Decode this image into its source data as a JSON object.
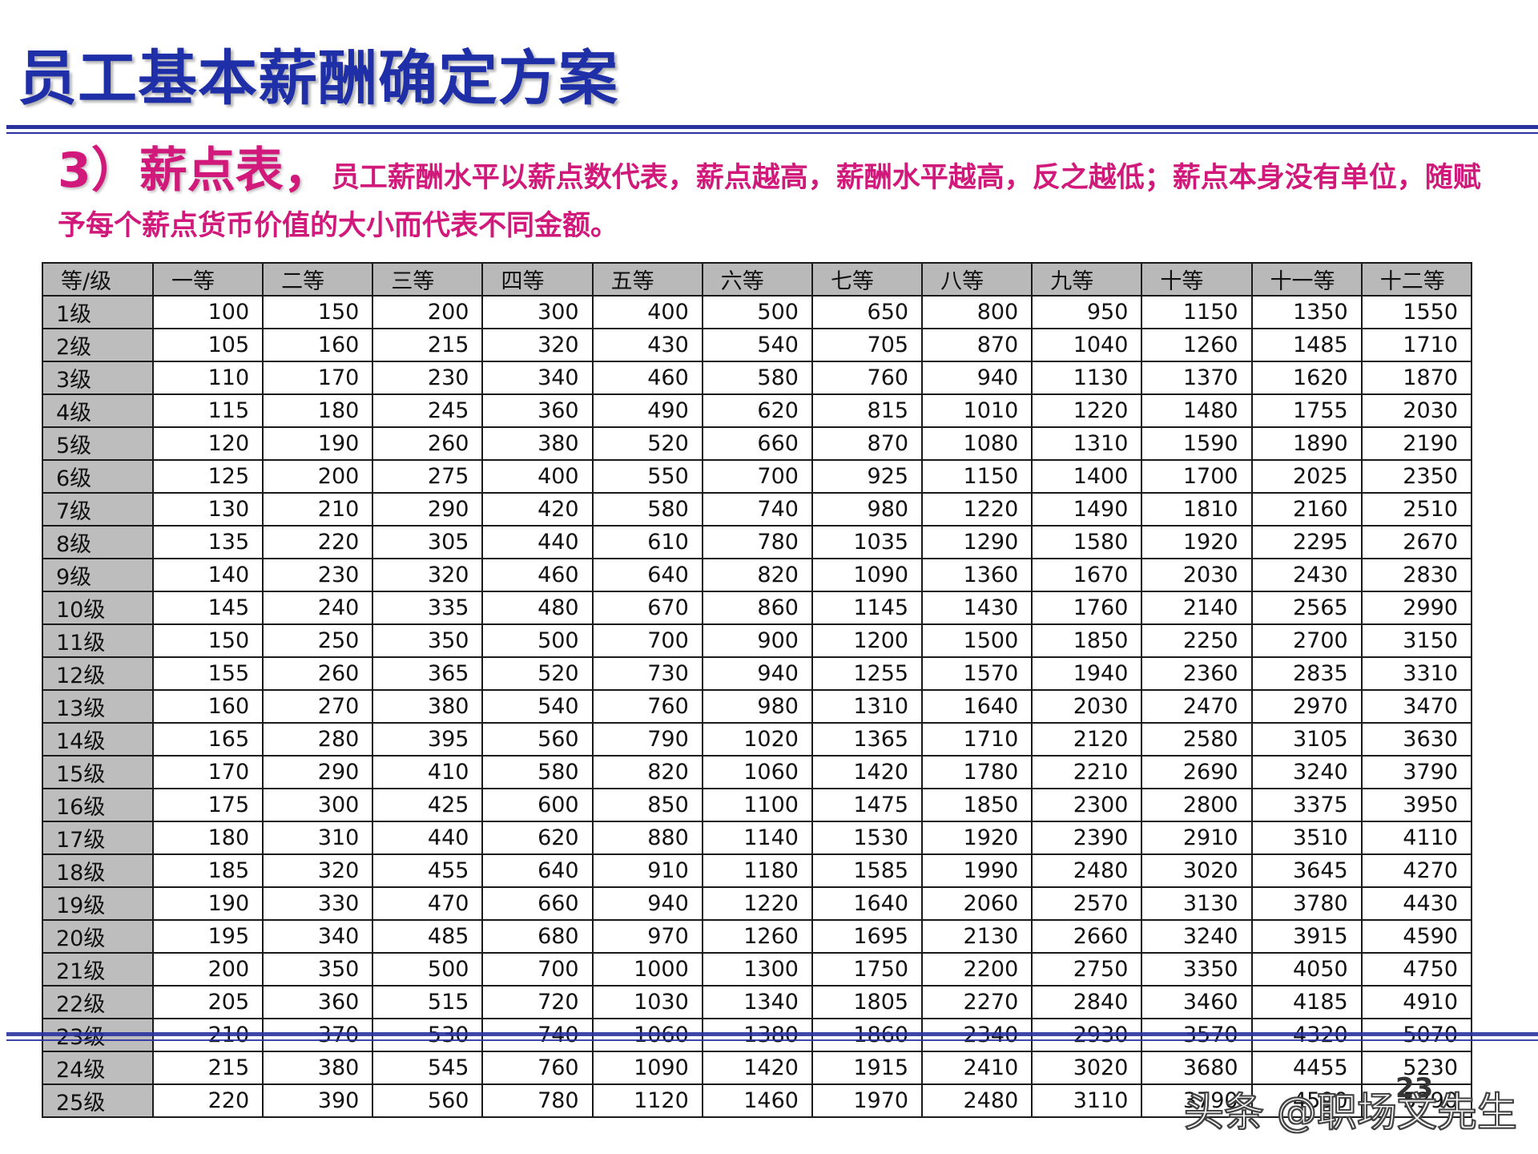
{
  "title": "员工基本薪酬确定方案",
  "subtitle": {
    "lead": "3）薪点表，",
    "body": "员工薪酬水平以薪点数代表，薪点越高，薪酬水平越高，反之越低；薪点本身没有单位，随赋予每个薪点货币价值的大小而代表不同金额。"
  },
  "table": {
    "columns": [
      "等/级",
      "一等",
      "二等",
      "三等",
      "四等",
      "五等",
      "六等",
      "七等",
      "八等",
      "九等",
      "十等",
      "十一等",
      "十二等"
    ],
    "rows": [
      {
        "label": "1级",
        "values": [
          "100",
          "150",
          "200",
          "300",
          "400",
          "500",
          "650",
          "800",
          "950",
          "1150",
          "1350",
          "1550"
        ]
      },
      {
        "label": "2级",
        "values": [
          "105",
          "160",
          "215",
          "320",
          "430",
          "540",
          "705",
          "870",
          "1040",
          "1260",
          "1485",
          "1710"
        ]
      },
      {
        "label": "3级",
        "values": [
          "110",
          "170",
          "230",
          "340",
          "460",
          "580",
          "760",
          "940",
          "1130",
          "1370",
          "1620",
          "1870"
        ]
      },
      {
        "label": "4级",
        "values": [
          "115",
          "180",
          "245",
          "360",
          "490",
          "620",
          "815",
          "1010",
          "1220",
          "1480",
          "1755",
          "2030"
        ]
      },
      {
        "label": "5级",
        "values": [
          "120",
          "190",
          "260",
          "380",
          "520",
          "660",
          "870",
          "1080",
          "1310",
          "1590",
          "1890",
          "2190"
        ]
      },
      {
        "label": "6级",
        "values": [
          "125",
          "200",
          "275",
          "400",
          "550",
          "700",
          "925",
          "1150",
          "1400",
          "1700",
          "2025",
          "2350"
        ]
      },
      {
        "label": "7级",
        "values": [
          "130",
          "210",
          "290",
          "420",
          "580",
          "740",
          "980",
          "1220",
          "1490",
          "1810",
          "2160",
          "2510"
        ]
      },
      {
        "label": "8级",
        "values": [
          "135",
          "220",
          "305",
          "440",
          "610",
          "780",
          "1035",
          "1290",
          "1580",
          "1920",
          "2295",
          "2670"
        ]
      },
      {
        "label": "9级",
        "values": [
          "140",
          "230",
          "320",
          "460",
          "640",
          "820",
          "1090",
          "1360",
          "1670",
          "2030",
          "2430",
          "2830"
        ]
      },
      {
        "label": "10级",
        "values": [
          "145",
          "240",
          "335",
          "480",
          "670",
          "860",
          "1145",
          "1430",
          "1760",
          "2140",
          "2565",
          "2990"
        ]
      },
      {
        "label": "11级",
        "values": [
          "150",
          "250",
          "350",
          "500",
          "700",
          "900",
          "1200",
          "1500",
          "1850",
          "2250",
          "2700",
          "3150"
        ]
      },
      {
        "label": "12级",
        "values": [
          "155",
          "260",
          "365",
          "520",
          "730",
          "940",
          "1255",
          "1570",
          "1940",
          "2360",
          "2835",
          "3310"
        ]
      },
      {
        "label": "13级",
        "values": [
          "160",
          "270",
          "380",
          "540",
          "760",
          "980",
          "1310",
          "1640",
          "2030",
          "2470",
          "2970",
          "3470"
        ]
      },
      {
        "label": "14级",
        "values": [
          "165",
          "280",
          "395",
          "560",
          "790",
          "1020",
          "1365",
          "1710",
          "2120",
          "2580",
          "3105",
          "3630"
        ]
      },
      {
        "label": "15级",
        "values": [
          "170",
          "290",
          "410",
          "580",
          "820",
          "1060",
          "1420",
          "1780",
          "2210",
          "2690",
          "3240",
          "3790"
        ]
      },
      {
        "label": "16级",
        "values": [
          "175",
          "300",
          "425",
          "600",
          "850",
          "1100",
          "1475",
          "1850",
          "2300",
          "2800",
          "3375",
          "3950"
        ]
      },
      {
        "label": "17级",
        "values": [
          "180",
          "310",
          "440",
          "620",
          "880",
          "1140",
          "1530",
          "1920",
          "2390",
          "2910",
          "3510",
          "4110"
        ]
      },
      {
        "label": "18级",
        "values": [
          "185",
          "320",
          "455",
          "640",
          "910",
          "1180",
          "1585",
          "1990",
          "2480",
          "3020",
          "3645",
          "4270"
        ]
      },
      {
        "label": "19级",
        "values": [
          "190",
          "330",
          "470",
          "660",
          "940",
          "1220",
          "1640",
          "2060",
          "2570",
          "3130",
          "3780",
          "4430"
        ]
      },
      {
        "label": "20级",
        "values": [
          "195",
          "340",
          "485",
          "680",
          "970",
          "1260",
          "1695",
          "2130",
          "2660",
          "3240",
          "3915",
          "4590"
        ]
      },
      {
        "label": "21级",
        "values": [
          "200",
          "350",
          "500",
          "700",
          "1000",
          "1300",
          "1750",
          "2200",
          "2750",
          "3350",
          "4050",
          "4750"
        ]
      },
      {
        "label": "22级",
        "values": [
          "205",
          "360",
          "515",
          "720",
          "1030",
          "1340",
          "1805",
          "2270",
          "2840",
          "3460",
          "4185",
          "4910"
        ]
      },
      {
        "label": "23级",
        "values": [
          "210",
          "370",
          "530",
          "740",
          "1060",
          "1380",
          "1860",
          "2340",
          "2930",
          "3570",
          "4320",
          "5070"
        ]
      },
      {
        "label": "24级",
        "values": [
          "215",
          "380",
          "545",
          "760",
          "1090",
          "1420",
          "1915",
          "2410",
          "3020",
          "3680",
          "4455",
          "5230"
        ]
      },
      {
        "label": "25级",
        "values": [
          "220",
          "390",
          "560",
          "780",
          "1120",
          "1460",
          "1970",
          "2480",
          "3110",
          "3790",
          "4590",
          "5390"
        ]
      }
    ]
  },
  "page_number": "23",
  "watermark": "头条 @职场文先生",
  "colors": {
    "title": "#1f2fa8",
    "subtitle": "#d0197a",
    "rule": "#2a32a0",
    "header_fill": "#b9b9b9"
  }
}
